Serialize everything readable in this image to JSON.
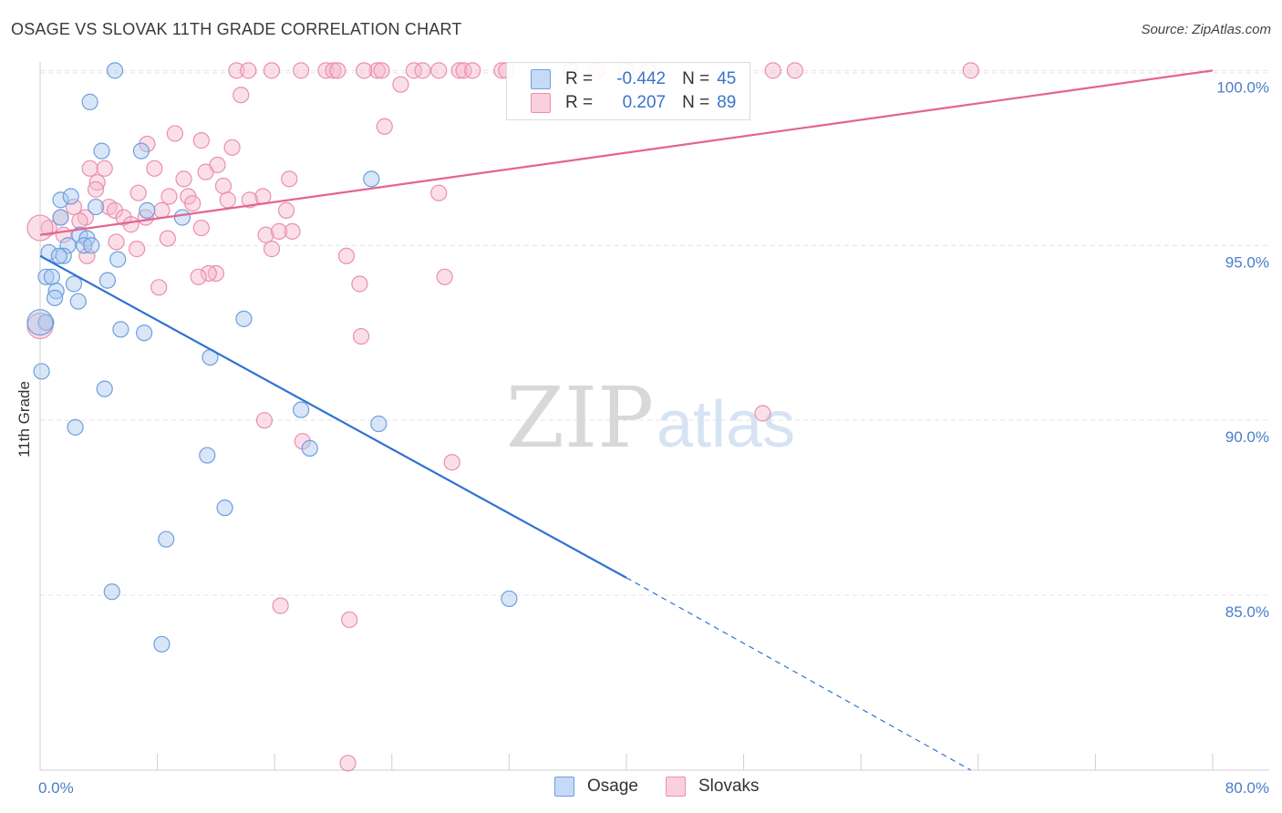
{
  "title": "OSAGE VS SLOVAK 11TH GRADE CORRELATION CHART",
  "source": "Source: ZipAtlas.com",
  "watermark": {
    "zip": "ZIP",
    "atlas": "atlas"
  },
  "legend": {
    "rows": [
      {
        "r_label": "R =",
        "r_value": "-0.442",
        "n_label": "N =",
        "n_value": "45"
      },
      {
        "r_label": "R =",
        "r_value": "0.207",
        "n_label": "N =",
        "n_value": "89"
      }
    ]
  },
  "bottom_legend": {
    "osage": "Osage",
    "slovaks": "Slovaks"
  },
  "colors": {
    "osage_fill": "#a9c8f0",
    "osage_stroke": "#6f9fde",
    "osage_line": "#2f72d2",
    "slovak_fill": "#f6b8cc",
    "slovak_stroke": "#ea8fae",
    "slovak_line": "#e4648e",
    "tick_label": "#4a7ec8",
    "grid": "#e3e3e3"
  },
  "chart_data": {
    "type": "scatter",
    "title": "OSAGE VS SLOVAK 11TH GRADE CORRELATION CHART",
    "xlabel": "",
    "ylabel": "11th Grade",
    "xlim": [
      0,
      80
    ],
    "ylim": [
      80.0,
      100.4
    ],
    "x_tick_labels": [
      "0.0%",
      "80.0%"
    ],
    "y_ticks": [
      85,
      90,
      95,
      100
    ],
    "y_tick_labels": [
      "85.0%",
      "90.0%",
      "95.0%",
      "100.0%"
    ],
    "grid": true,
    "legend_position": "top-center",
    "series": [
      {
        "name": "Osage",
        "points": [
          [
            5.1,
            100.0
          ],
          [
            3.4,
            99.1
          ],
          [
            4.2,
            97.7
          ],
          [
            6.9,
            97.7
          ],
          [
            22.6,
            96.9
          ],
          [
            1.4,
            96.3
          ],
          [
            2.1,
            96.4
          ],
          [
            3.8,
            96.1
          ],
          [
            7.3,
            96.0
          ],
          [
            1.4,
            95.8
          ],
          [
            9.7,
            95.8
          ],
          [
            2.7,
            95.3
          ],
          [
            3.2,
            95.2
          ],
          [
            3.0,
            95.0
          ],
          [
            1.9,
            95.0
          ],
          [
            3.5,
            95.0
          ],
          [
            0.6,
            94.8
          ],
          [
            1.6,
            94.7
          ],
          [
            1.3,
            94.7
          ],
          [
            5.3,
            94.6
          ],
          [
            0.4,
            94.1
          ],
          [
            0.8,
            94.1
          ],
          [
            4.6,
            94.0
          ],
          [
            2.3,
            93.9
          ],
          [
            1.1,
            93.7
          ],
          [
            1.0,
            93.5
          ],
          [
            2.6,
            93.4
          ],
          [
            0.4,
            92.8
          ],
          [
            13.9,
            92.9
          ],
          [
            5.5,
            92.6
          ],
          [
            7.1,
            92.5
          ],
          [
            11.6,
            91.8
          ],
          [
            0.1,
            91.4
          ],
          [
            4.4,
            90.9
          ],
          [
            17.8,
            90.3
          ],
          [
            2.4,
            89.8
          ],
          [
            23.1,
            89.9
          ],
          [
            18.4,
            89.2
          ],
          [
            11.4,
            89.0
          ],
          [
            12.6,
            87.5
          ],
          [
            8.6,
            86.6
          ],
          [
            4.9,
            85.1
          ],
          [
            32.0,
            84.9
          ],
          [
            8.3,
            83.6
          ],
          [
            0.0,
            92.8
          ]
        ]
      },
      {
        "name": "Slovaks",
        "points": [
          [
            13.4,
            100.0
          ],
          [
            14.2,
            100.0
          ],
          [
            15.8,
            100.0
          ],
          [
            17.8,
            100.0
          ],
          [
            19.5,
            100.0
          ],
          [
            20.0,
            100.0
          ],
          [
            20.3,
            100.0
          ],
          [
            23.0,
            100.0
          ],
          [
            23.3,
            100.0
          ],
          [
            25.5,
            100.0
          ],
          [
            27.2,
            100.0
          ],
          [
            28.6,
            100.0
          ],
          [
            28.9,
            100.0
          ],
          [
            29.5,
            100.0
          ],
          [
            31.5,
            100.0
          ],
          [
            38.0,
            100.0
          ],
          [
            40.0,
            100.0
          ],
          [
            41.5,
            100.0
          ],
          [
            50.0,
            100.0
          ],
          [
            51.5,
            100.0
          ],
          [
            63.5,
            100.0
          ],
          [
            24.6,
            99.6
          ],
          [
            13.7,
            99.3
          ],
          [
            23.5,
            98.4
          ],
          [
            9.2,
            98.2
          ],
          [
            11.0,
            98.0
          ],
          [
            7.3,
            97.9
          ],
          [
            13.1,
            97.8
          ],
          [
            3.4,
            97.2
          ],
          [
            4.4,
            97.2
          ],
          [
            7.8,
            97.2
          ],
          [
            11.3,
            97.1
          ],
          [
            12.1,
            97.3
          ],
          [
            9.8,
            96.9
          ],
          [
            17.0,
            96.9
          ],
          [
            3.9,
            96.8
          ],
          [
            12.5,
            96.7
          ],
          [
            3.8,
            96.6
          ],
          [
            6.7,
            96.5
          ],
          [
            8.8,
            96.4
          ],
          [
            10.1,
            96.4
          ],
          [
            15.2,
            96.4
          ],
          [
            27.2,
            96.5
          ],
          [
            12.8,
            96.3
          ],
          [
            14.3,
            96.3
          ],
          [
            10.4,
            96.2
          ],
          [
            2.3,
            96.1
          ],
          [
            4.7,
            96.1
          ],
          [
            5.1,
            96.0
          ],
          [
            8.3,
            96.0
          ],
          [
            16.8,
            96.0
          ],
          [
            1.4,
            95.8
          ],
          [
            3.1,
            95.8
          ],
          [
            5.7,
            95.8
          ],
          [
            7.2,
            95.8
          ],
          [
            2.7,
            95.7
          ],
          [
            6.2,
            95.6
          ],
          [
            11.0,
            95.5
          ],
          [
            0.6,
            95.5
          ],
          [
            1.6,
            95.3
          ],
          [
            17.2,
            95.4
          ],
          [
            8.7,
            95.2
          ],
          [
            15.4,
            95.3
          ],
          [
            16.3,
            95.4
          ],
          [
            5.2,
            95.1
          ],
          [
            6.6,
            94.9
          ],
          [
            15.8,
            94.9
          ],
          [
            3.2,
            94.7
          ],
          [
            20.9,
            94.7
          ],
          [
            12.0,
            94.2
          ],
          [
            11.5,
            94.2
          ],
          [
            10.8,
            94.1
          ],
          [
            27.6,
            94.1
          ],
          [
            8.1,
            93.8
          ],
          [
            21.8,
            93.9
          ],
          [
            21.9,
            92.4
          ],
          [
            15.3,
            90.0
          ],
          [
            49.3,
            90.2
          ],
          [
            17.9,
            89.4
          ],
          [
            28.1,
            88.8
          ],
          [
            16.4,
            84.7
          ],
          [
            21.1,
            84.3
          ],
          [
            21.0,
            80.2
          ],
          [
            0.0,
            95.5
          ],
          [
            0.0,
            92.7
          ],
          [
            31.8,
            100.0
          ],
          [
            36.2,
            100.0
          ],
          [
            26.1,
            100.0
          ],
          [
            22.1,
            100.0
          ]
        ]
      }
    ],
    "trend_lines": [
      {
        "series": "Osage",
        "x": [
          0,
          40
        ],
        "y": [
          94.7,
          85.5
        ],
        "dashed_extension_to": [
          63.5,
          80.0
        ]
      },
      {
        "series": "Slovaks",
        "x": [
          0,
          80
        ],
        "y": [
          95.3,
          100.0
        ]
      }
    ]
  }
}
